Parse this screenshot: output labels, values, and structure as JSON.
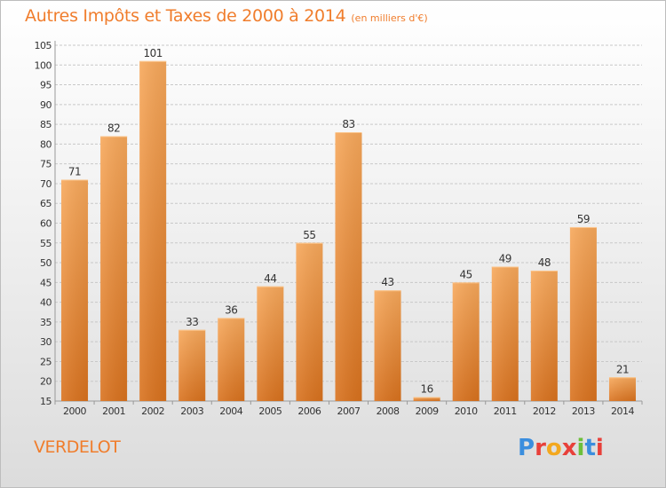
{
  "header": {
    "title": "Autres Impôts et Taxes de 2000 à 2014",
    "unit": "(en milliers d'€)"
  },
  "commune": "VERDELOT",
  "logo": {
    "text": "Proxiti",
    "colors": [
      "#3b8ede",
      "#e8403a",
      "#f3a81f",
      "#e8403a",
      "#6cbf3a",
      "#3b8ede",
      "#e8403a"
    ]
  },
  "colors": {
    "accent": "#f07d2c",
    "bar_top": "#f7a85b",
    "bar_bottom": "#d9721e",
    "grid": "#c8c8c8",
    "axis_text": "#333333"
  },
  "chart_data": {
    "type": "bar",
    "categories": [
      "2000",
      "2001",
      "2002",
      "2003",
      "2004",
      "2005",
      "2006",
      "2007",
      "2008",
      "2009",
      "2010",
      "2011",
      "2012",
      "2013",
      "2014"
    ],
    "values": [
      71,
      82,
      101,
      33,
      36,
      44,
      55,
      83,
      43,
      16,
      45,
      49,
      48,
      59,
      21
    ],
    "ylim": [
      15,
      105
    ],
    "yticks": [
      "15",
      "20",
      "25",
      "30",
      "35",
      "40",
      "45",
      "50",
      "55",
      "60",
      "65",
      "70",
      "75",
      "80",
      "85",
      "90",
      "95",
      "100",
      "105"
    ],
    "grid": true,
    "data_labels": true
  }
}
